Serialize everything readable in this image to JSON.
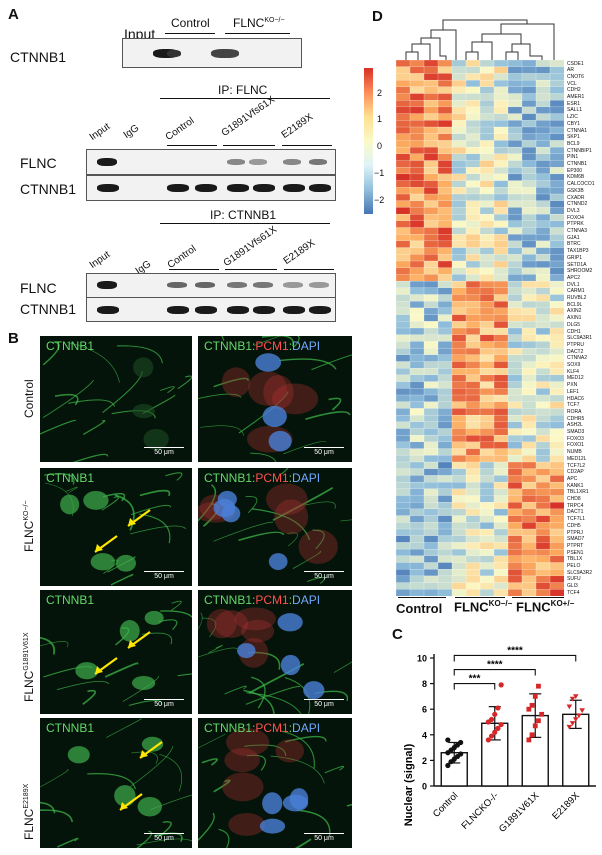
{
  "panels": {
    "a": "A",
    "b": "B",
    "c": "C",
    "d": "D"
  },
  "panel_a": {
    "top": {
      "protein": "CTNNB1",
      "lanes": [
        "Input",
        "Control",
        "FLNC"
      ],
      "ko_sup": "KO−/−"
    },
    "ip1": {
      "title": "IP: FLNC",
      "lanes": [
        "Input",
        "IgG",
        "Control",
        "G1891Vfs61X",
        "E2189X"
      ],
      "rows": [
        "FLNC",
        "CTNNB1"
      ]
    },
    "ip2": {
      "title": "IP: CTNNB1",
      "lanes": [
        "Input",
        "IgG",
        "Control",
        "G1891Vfs61X",
        "E2189X"
      ],
      "rows": [
        "FLNC",
        "CTNNB1"
      ]
    }
  },
  "panel_b": {
    "col1": "CTNNB1",
    "col2": {
      "a": "CTNNB1",
      "b": ":",
      "c": "PCM1",
      "d": ":",
      "e": "DAPI"
    },
    "scale": "50 μm",
    "rows": [
      {
        "label": "Control",
        "sup": ""
      },
      {
        "label": "FLNC",
        "sup": "KO−/−"
      },
      {
        "label": "FLNC",
        "sup": "G1891V61X"
      },
      {
        "label": "FLNC",
        "sup": "E2189X"
      }
    ]
  },
  "panel_c": {
    "ylabel": "Nuclear (signal)",
    "yticks": [
      "0",
      "2",
      "4",
      "6",
      "8",
      "10"
    ],
    "sig": [
      "***",
      "****",
      "****"
    ]
  },
  "chart_data": {
    "type": "bar",
    "categories": [
      "Control",
      "FLNCKO-/-",
      "G1891V61X",
      "E2189X"
    ],
    "tick_labels": [
      "Control",
      "FLNCKO-/-",
      "G1891V61X",
      "E2189X"
    ],
    "values": [
      2.6,
      4.9,
      5.5,
      5.6
    ],
    "errors": [
      0.8,
      1.3,
      1.7,
      1.1
    ],
    "points": [
      [
        1.6,
        1.9,
        2.1,
        2.3,
        2.5,
        2.6,
        2.8,
        3.0,
        3.2,
        3.4,
        3.6
      ],
      [
        3.6,
        3.9,
        4.2,
        4.5,
        4.8,
        5.0,
        5.2,
        5.6,
        6.1,
        7.9
      ],
      [
        3.6,
        4.0,
        4.7,
        5.1,
        5.6,
        6.0,
        6.3,
        7.0,
        7.8
      ],
      [
        4.6,
        4.9,
        5.2,
        5.5,
        5.9,
        6.2,
        6.8,
        7.0
      ]
    ],
    "ylabel": "Nuclear (signal)",
    "ylim": [
      0,
      10
    ],
    "point_colors": [
      "#111111",
      "#d62728",
      "#d62728",
      "#d62728"
    ]
  },
  "panel_d": {
    "legend_ticks": [
      "2",
      "1",
      "0",
      "−1",
      "−2"
    ],
    "colors": {
      "high": "#d73027",
      "mid": "#fbf9c6",
      "low": "#4575b4"
    },
    "groups": [
      {
        "label": "Control",
        "sup": ""
      },
      {
        "label": "FLNC",
        "sup": "KO−/−"
      },
      {
        "label": "FLNC",
        "sup": "KO+/−"
      }
    ],
    "genes": [
      "CSDE1",
      "AR",
      "CNOT6",
      "VCL",
      "CDH2",
      "AMER1",
      "ESR1",
      "SALL1",
      "LZIC",
      "CBY1",
      "CTNNA1",
      "SKP1",
      "BCL9",
      "CTNNBIP1",
      "PIN1",
      "CTNNB1",
      "EP300",
      "KDM6B",
      "CALCOCO1",
      "GSK3B",
      "CXADR",
      "CTNND2",
      "DVL3",
      "FOXO4",
      "PTPRK",
      "CTNNA3",
      "GJA1",
      "BTRC",
      "TAX1BP3",
      "GRIP1",
      "SETD1A",
      "SHROOM2",
      "APC2",
      "DVL1",
      "CARM1",
      "RUVBL2",
      "BCL9L",
      "AXIN2",
      "AXIN1",
      "DLG5",
      "CDH1",
      "SLC9A3R1",
      "PTPRU",
      "DACT2",
      "CTNNA2",
      "SOX9",
      "KLF4",
      "MED12",
      "PXN",
      "LEF1",
      "HDAC6",
      "TCF7",
      "RORA",
      "CDHR5",
      "ASH2L",
      "SMAD3",
      "FOXO3",
      "FOXO1",
      "NUMB",
      "MED12L",
      "TCF7L2",
      "CD2AP",
      "APC",
      "KANK1",
      "TBL1XR1",
      "CHD8",
      "TRPC4",
      "DACT1",
      "TCF7L1",
      "CDH5",
      "PTPRJ",
      "SMAD7",
      "PTPRT",
      "PSEN1",
      "TBL1X",
      "PELO",
      "SLC9A3R2",
      "SUFU",
      "GLI3",
      "TCF4"
    ]
  }
}
